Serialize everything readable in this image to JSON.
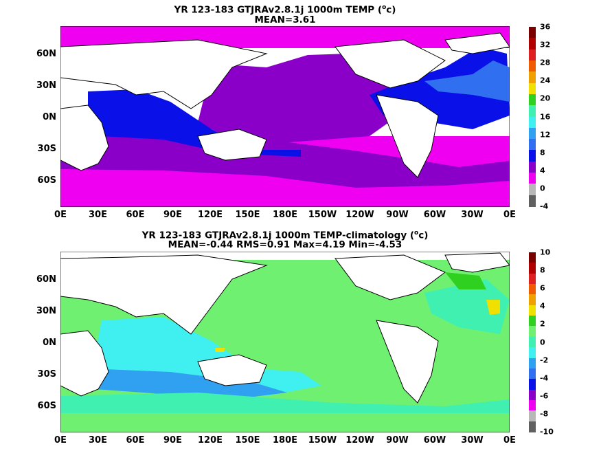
{
  "panels": [
    {
      "title_line1": "YR 123-183 GTJRAv2.8.1j 1000m TEMP (",
      "title_unit_sup": "o",
      "title_unit_end": "c)",
      "title_line2": "MEAN=3.61",
      "x_ticks": [
        "0E",
        "30E",
        "60E",
        "90E",
        "120E",
        "150E",
        "180E",
        "150W",
        "120W",
        "90W",
        "60W",
        "30W",
        "0E"
      ],
      "y_ticks": [
        "60N",
        "30N",
        "0N",
        "30S",
        "60S"
      ],
      "colorbar": {
        "labels": [
          "36",
          "32",
          "28",
          "24",
          "20",
          "16",
          "12",
          "8",
          "4",
          "0",
          "-4"
        ],
        "colors": [
          "#7a0000",
          "#b00000",
          "#e02020",
          "#f05a00",
          "#f0a000",
          "#f0e000",
          "#30d020",
          "#40f0b0",
          "#40f0f0",
          "#30a0f0",
          "#3070f0",
          "#0a10e8",
          "#8a00c8",
          "#f000f0",
          "#b8b8b8",
          "#606060"
        ]
      }
    },
    {
      "title_line1": "YR 123-183 GTJRAv2.8.1j 1000m TEMP-climatology (",
      "title_unit_sup": "o",
      "title_unit_end": "c)",
      "title_line2": "MEAN=-0.44   RMS=0.91   Max=4.19   Min=-4.53",
      "x_ticks": [
        "0E",
        "30E",
        "60E",
        "90E",
        "120E",
        "150E",
        "180E",
        "150W",
        "120W",
        "90W",
        "60W",
        "30W",
        "0E"
      ],
      "y_ticks": [
        "60N",
        "30N",
        "0N",
        "30S",
        "60S"
      ],
      "colorbar": {
        "labels": [
          "10",
          "8",
          "6",
          "4",
          "2",
          "0",
          "-2",
          "-4",
          "-6",
          "-8",
          "-10"
        ],
        "colors": [
          "#7a0000",
          "#b00000",
          "#e02020",
          "#f05a00",
          "#f0a000",
          "#f0e000",
          "#30d020",
          "#70f070",
          "#40f0b0",
          "#40f0f0",
          "#30a0f0",
          "#3070f0",
          "#0a10e8",
          "#8a00c8",
          "#f000f0",
          "#b8b8b8",
          "#606060"
        ]
      }
    }
  ]
}
